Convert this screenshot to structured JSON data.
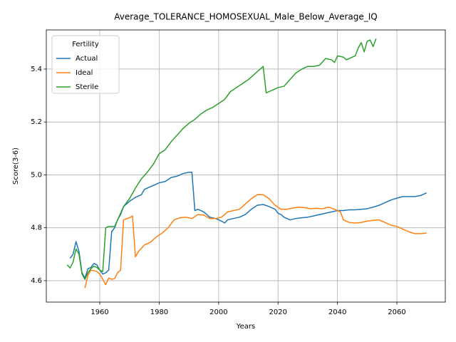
{
  "chart_data": {
    "type": "line",
    "title": "Average_TOLERANCE_HOMOSEXUAL_Male_Below_Average_IQ",
    "xlabel": "Years",
    "ylabel": "Score(3-6)",
    "legend_title": "Fertility",
    "legend": "upper left",
    "grid": true,
    "xlim": [
      1942.0,
      2076.3
    ],
    "ylim": [
      4.519,
      5.548
    ],
    "xticks": [
      1960,
      1980,
      2000,
      2020,
      2040,
      2060
    ],
    "yticks": [
      4.6,
      4.8,
      {
        "value": 5,
        "label": "5.0"
      },
      5.2,
      5.4
    ],
    "series": [
      {
        "name": "Actual",
        "color": "#1f77b4",
        "x": [
          1950,
          1951,
          1952,
          1953,
          1954,
          1955,
          1956,
          1957,
          1958,
          1959,
          1960,
          1961,
          1962,
          1963,
          1964,
          1965,
          1966,
          1967,
          1968,
          1970,
          1972,
          1974,
          1975,
          1978,
          1980,
          1982,
          1984,
          1986,
          1988,
          1990,
          1991,
          1992,
          1993,
          1995,
          1997,
          1999,
          2001,
          2002,
          2003,
          2005,
          2007,
          2009,
          2011,
          2013,
          2015,
          2017,
          2019,
          2020,
          2021,
          2022,
          2024,
          2026,
          2028,
          2030,
          2032,
          2034,
          2036,
          2038,
          2040,
          2042,
          2044,
          2046,
          2048,
          2050,
          2052,
          2054,
          2056,
          2058,
          2060,
          2062,
          2064,
          2066,
          2068,
          2070
        ],
        "values": [
          4.685,
          4.7,
          4.748,
          4.71,
          4.63,
          4.61,
          4.645,
          4.65,
          4.665,
          4.66,
          4.64,
          4.625,
          4.63,
          4.64,
          4.785,
          4.8,
          4.83,
          4.85,
          4.88,
          4.9,
          4.915,
          4.925,
          4.945,
          4.96,
          4.97,
          4.975,
          4.99,
          4.995,
          5.005,
          5.01,
          5.01,
          4.865,
          4.87,
          4.86,
          4.84,
          4.835,
          4.825,
          4.818,
          4.83,
          4.835,
          4.84,
          4.85,
          4.87,
          4.885,
          4.888,
          4.88,
          4.87,
          4.855,
          4.85,
          4.84,
          4.83,
          4.835,
          4.838,
          4.84,
          4.845,
          4.85,
          4.855,
          4.86,
          4.865,
          4.865,
          4.868,
          4.868,
          4.87,
          4.872,
          4.878,
          4.885,
          4.895,
          4.905,
          4.912,
          4.918,
          4.918,
          4.918,
          4.922,
          4.932
        ]
      },
      {
        "name": "Ideal",
        "color": "#ff7f0e",
        "x": [
          1955,
          1956,
          1957,
          1959,
          1960,
          1961,
          1962,
          1963,
          1964,
          1965,
          1966,
          1967,
          1968,
          1970,
          1971,
          1972,
          1973,
          1975,
          1977,
          1979,
          1981,
          1983,
          1985,
          1987,
          1989,
          1991,
          1993,
          1995,
          1997,
          1999,
          2001,
          2003,
          2005,
          2007,
          2009,
          2011,
          2013,
          2015,
          2017,
          2019,
          2021,
          2023,
          2025,
          2027,
          2029,
          2031,
          2033,
          2035,
          2037,
          2039,
          2041,
          2042,
          2044,
          2046,
          2048,
          2050,
          2052,
          2054,
          2056,
          2058,
          2060,
          2062,
          2064,
          2066,
          2068,
          2070
        ],
        "values": [
          4.572,
          4.62,
          4.64,
          4.635,
          4.625,
          4.605,
          4.585,
          4.61,
          4.605,
          4.608,
          4.63,
          4.64,
          4.83,
          4.838,
          4.845,
          4.69,
          4.71,
          4.735,
          4.745,
          4.765,
          4.78,
          4.8,
          4.83,
          4.838,
          4.84,
          4.835,
          4.85,
          4.848,
          4.835,
          4.835,
          4.84,
          4.86,
          4.865,
          4.87,
          4.89,
          4.91,
          4.925,
          4.925,
          4.91,
          4.885,
          4.87,
          4.87,
          4.875,
          4.878,
          4.876,
          4.872,
          4.874,
          4.872,
          4.878,
          4.87,
          4.86,
          4.83,
          4.82,
          4.818,
          4.82,
          4.825,
          4.828,
          4.83,
          4.82,
          4.81,
          4.805,
          4.795,
          4.785,
          4.778,
          4.778,
          4.78
        ]
      },
      {
        "name": "Sterile",
        "color": "#2ca02c",
        "x": [
          1949,
          1950,
          1951,
          1952,
          1953,
          1954,
          1955,
          1956,
          1957,
          1958,
          1959,
          1960,
          1961,
          1962,
          1963,
          1965,
          1966,
          1968,
          1970,
          1972,
          1974,
          1976,
          1978,
          1980,
          1982,
          1984,
          1986,
          1988,
          1990,
          1992,
          1994,
          1996,
          1998,
          2000,
          2002,
          2004,
          2006,
          2008,
          2010,
          2012,
          2014,
          2015,
          2016,
          2018,
          2020,
          2022,
          2024,
          2026,
          2028,
          2030,
          2032,
          2034,
          2036,
          2038,
          2039,
          2040,
          2042,
          2043,
          2045,
          2046,
          2047,
          2048,
          2049,
          2050,
          2051,
          2052,
          2053
        ],
        "values": [
          4.66,
          4.648,
          4.67,
          4.72,
          4.7,
          4.625,
          4.605,
          4.63,
          4.645,
          4.655,
          4.65,
          4.64,
          4.635,
          4.8,
          4.805,
          4.805,
          4.83,
          4.88,
          4.91,
          4.95,
          4.985,
          5.01,
          5.04,
          5.08,
          5.095,
          5.125,
          5.15,
          5.175,
          5.195,
          5.21,
          5.23,
          5.245,
          5.255,
          5.27,
          5.285,
          5.315,
          5.33,
          5.345,
          5.36,
          5.38,
          5.4,
          5.41,
          5.31,
          5.32,
          5.33,
          5.335,
          5.36,
          5.385,
          5.4,
          5.41,
          5.41,
          5.415,
          5.44,
          5.435,
          5.425,
          5.45,
          5.445,
          5.435,
          5.445,
          5.45,
          5.48,
          5.5,
          5.465,
          5.505,
          5.51,
          5.485,
          5.515
        ]
      }
    ]
  }
}
